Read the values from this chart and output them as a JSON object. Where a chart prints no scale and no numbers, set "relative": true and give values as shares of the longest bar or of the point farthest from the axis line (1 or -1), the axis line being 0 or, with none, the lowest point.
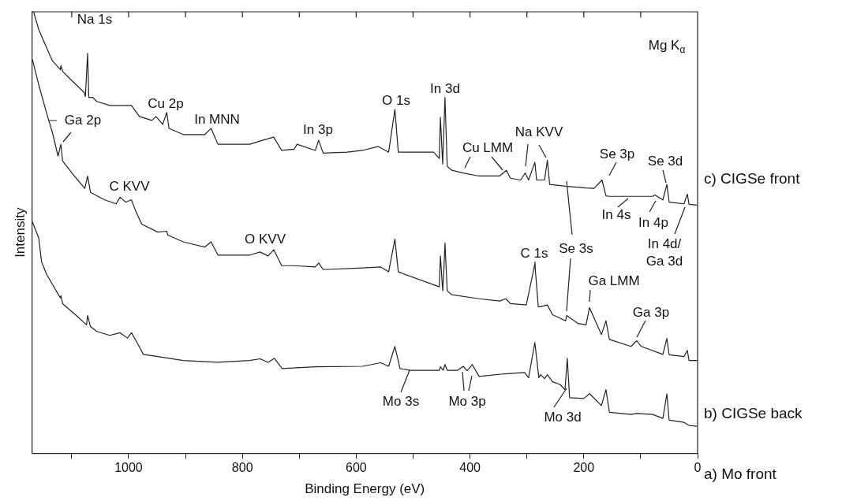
{
  "chart_data": {
    "type": "line",
    "relative": true,
    "xlabel": "Binding Energy (eV)",
    "ylabel": "Intensity",
    "xlim": [
      1170,
      0
    ],
    "xticks": [
      {
        "value": 1100,
        "label": null
      },
      1000,
      {
        "value": 900,
        "label": null
      },
      800,
      {
        "value": 700,
        "label": null
      },
      600,
      {
        "value": 500,
        "label": null
      },
      400,
      {
        "value": 300,
        "label": null
      },
      200,
      {
        "value": 100,
        "label": null
      },
      0
    ],
    "grid": false,
    "legend": false,
    "marker": "none",
    "line_style": "solid",
    "series": [
      {
        "name": "c) CIGSe front",
        "color": "#222222",
        "x": [
          1167,
          1158,
          1146,
          1134,
          1120,
          1119,
          1116,
          1098,
          1078,
          1076,
          1072,
          1070,
          1063,
          1056,
          1033,
          1015,
          995,
          981,
          959,
          952,
          940,
          933,
          929,
          904,
          866,
          855,
          843,
          787,
          765,
          745,
          731,
          709,
          704,
          672,
          666,
          658,
          616,
          589,
          561,
          543,
          532,
          526,
          464,
          454,
          452,
          448,
          444,
          440,
          432,
          412,
          384,
          348,
          336,
          329,
          311,
          303,
          297,
          286,
          283,
          269,
          264,
          260,
          232,
          196,
          182,
          168,
          161,
          155,
          117,
          79,
          75,
          61,
          54,
          50,
          24,
          18,
          15,
          1
        ],
        "values": [
          1.0,
          0.96,
          0.924,
          0.889,
          0.869,
          0.878,
          0.865,
          0.842,
          0.817,
          0.808,
          0.906,
          0.806,
          0.806,
          0.797,
          0.788,
          0.788,
          0.788,
          0.763,
          0.754,
          0.763,
          0.745,
          0.772,
          0.736,
          0.722,
          0.722,
          0.736,
          0.7,
          0.7,
          0.709,
          0.716,
          0.686,
          0.689,
          0.7,
          0.686,
          0.709,
          0.68,
          0.682,
          0.686,
          0.695,
          0.682,
          0.779,
          0.682,
          0.682,
          0.668,
          0.761,
          0.655,
          0.806,
          0.65,
          0.641,
          0.635,
          0.628,
          0.628,
          0.641,
          0.623,
          0.619,
          0.635,
          0.619,
          0.659,
          0.619,
          0.619,
          0.664,
          0.609,
          0.605,
          0.601,
          0.6,
          0.619,
          0.583,
          0.582,
          0.582,
          0.582,
          0.585,
          0.574,
          0.609,
          0.569,
          0.565,
          0.587,
          0.564,
          0.562
        ]
      },
      {
        "name": "b) CIGSe back",
        "color": "#222222",
        "x": [
          1169,
          1158,
          1144,
          1134,
          1124,
          1119,
          1116,
          1098,
          1077,
          1072,
          1067,
          1042,
          1022,
          1015,
          1005,
          995,
          987,
          977,
          949,
          933,
          931,
          904,
          866,
          855,
          843,
          787,
          769,
          755,
          745,
          731,
          709,
          672,
          666,
          658,
          589,
          557,
          543,
          532,
          526,
          454,
          452,
          448,
          446,
          444,
          440,
          432,
          384,
          348,
          337,
          329,
          301,
          286,
          280,
          276,
          264,
          255,
          232,
          230,
          210,
          196,
          190,
          169,
          161,
          155,
          117,
          107,
          99,
          61,
          54,
          50,
          24,
          18,
          15,
          1
        ],
        "values": [
          0.892,
          0.835,
          0.77,
          0.727,
          0.673,
          0.7,
          0.662,
          0.632,
          0.6,
          0.628,
          0.591,
          0.574,
          0.565,
          0.58,
          0.569,
          0.574,
          0.547,
          0.519,
          0.501,
          0.503,
          0.494,
          0.479,
          0.467,
          0.479,
          0.449,
          0.449,
          0.456,
          0.447,
          0.461,
          0.425,
          0.425,
          0.422,
          0.431,
          0.416,
          0.42,
          0.422,
          0.411,
          0.485,
          0.411,
          0.377,
          0.447,
          0.368,
          0.413,
          0.476,
          0.368,
          0.359,
          0.35,
          0.345,
          0.35,
          0.339,
          0.336,
          0.429,
          0.332,
          0.332,
          0.336,
          0.314,
          0.3,
          0.312,
          0.294,
          0.291,
          0.33,
          0.269,
          0.3,
          0.258,
          0.242,
          0.255,
          0.242,
          0.224,
          0.26,
          0.223,
          0.219,
          0.233,
          0.21,
          0.21
        ]
      },
      {
        "name": "a) Mo front",
        "color": "#222222",
        "x": [
          1169,
          1158,
          1153,
          1144,
          1120,
          1119,
          1116,
          1092,
          1074,
          1072,
          1067,
          1056,
          1033,
          1015,
          1002,
          995,
          987,
          974,
          949,
          904,
          843,
          787,
          769,
          755,
          744,
          730,
          672,
          589,
          557,
          543,
          532,
          523,
          505,
          454,
          452,
          447,
          444,
          440,
          422,
          412,
          405,
          396,
          384,
          339,
          304,
          297,
          286,
          279,
          276,
          269,
          264,
          255,
          242,
          233,
          229,
          225,
          200,
          190,
          169,
          161,
          155,
          117,
          107,
          79,
          61,
          54,
          50,
          24,
          15,
          1
        ],
        "values": [
          0.524,
          0.488,
          0.434,
          0.405,
          0.352,
          0.357,
          0.339,
          0.312,
          0.291,
          0.312,
          0.287,
          0.276,
          0.267,
          0.273,
          0.261,
          0.273,
          0.255,
          0.224,
          0.219,
          0.21,
          0.206,
          0.21,
          0.214,
          0.206,
          0.215,
          0.192,
          0.196,
          0.197,
          0.205,
          0.197,
          0.242,
          0.192,
          0.188,
          0.188,
          0.196,
          0.188,
          0.201,
          0.188,
          0.188,
          0.197,
          0.187,
          0.201,
          0.174,
          0.18,
          0.183,
          0.171,
          0.251,
          0.171,
          0.178,
          0.169,
          0.178,
          0.162,
          0.156,
          0.144,
          0.215,
          0.126,
          0.124,
          0.135,
          0.108,
          0.144,
          0.093,
          0.088,
          0.09,
          0.088,
          0.079,
          0.135,
          0.075,
          0.07,
          0.063,
          0.061
        ]
      }
    ],
    "annotations": [
      "Mg K$_{α}$",
      "Na 1s",
      "Ga 2p",
      "Cu 2p",
      "In MNN",
      "In 3p",
      "O 1s",
      "In 3d",
      "Cu LMM",
      "Na KVV",
      "Se 3p",
      "Se 3d",
      "In 4s",
      "In 4p",
      "In 4d/\nGa 3d",
      "C KVV",
      "O KVV",
      "C 1s",
      "Se 3s",
      "Ga LMM",
      "Ga 3p",
      "Mo 3s",
      "Mo 3p",
      "Mo 3d"
    ]
  }
}
